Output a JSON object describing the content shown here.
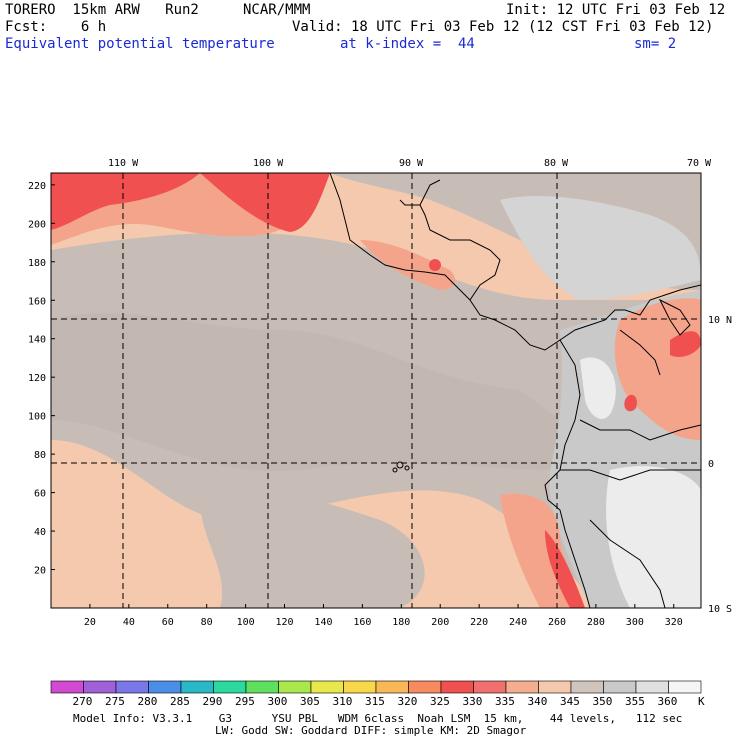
{
  "header": {
    "model": "TORERO  15km ARW   Run2",
    "org": "NCAR/MMM",
    "init": "Init: 12 UTC Fri 03 Feb 12",
    "fcst": "Fcst:    6 h",
    "valid": "Valid: 18 UTC Fri 03 Feb 12 (12 CST Fri 03 Feb 12)",
    "field": "Equivalent potential temperature",
    "kindex": "at k-index =  44",
    "smooth": "sm= 2"
  },
  "map": {
    "lon_labels": [
      "110 W",
      "100 W",
      "90 W",
      "80 W",
      "70 W"
    ],
    "lat_labels": [
      "10 N",
      "0",
      "10 S"
    ],
    "y_ticks": [
      "20",
      "40",
      "60",
      "80",
      "100",
      "120",
      "140",
      "160",
      "180",
      "200",
      "220"
    ],
    "x_ticks": [
      "20",
      "40",
      "60",
      "80",
      "100",
      "120",
      "140",
      "160",
      "180",
      "200",
      "220",
      "240",
      "260",
      "280",
      "300",
      "320"
    ]
  },
  "colorbar": {
    "unit": "K",
    "levels": [
      "270",
      "275",
      "280",
      "285",
      "290",
      "295",
      "300",
      "305",
      "310",
      "315",
      "320",
      "325",
      "330",
      "335",
      "340",
      "345",
      "350",
      "355",
      "360"
    ],
    "colors": [
      "#d24ad2",
      "#a060d8",
      "#7a78e8",
      "#4a8ee8",
      "#28b8c8",
      "#2ad8a0",
      "#5ee05e",
      "#a8e84a",
      "#e8e84a",
      "#f8d848",
      "#f8b858",
      "#f88a60",
      "#f05050",
      "#f07070",
      "#f5ad90",
      "#f4c9ad",
      "#d0c5bd",
      "#c9c9c9",
      "#e0e0e0",
      "#f5f5f5"
    ]
  },
  "footer": {
    "line1": "Model Info: V3.3.1    G3      YSU PBL   WDM 6class  Noah LSM  15 km,    44 levels,   112 sec",
    "line2": "LW: Godd SW: Goddard DIFF: simple KM: 2D Smagor"
  },
  "field_colors": {
    "base": "#f4c9ad",
    "gray": "#c8bdb6",
    "light_gray": "#d4d4d4",
    "white_gray": "#ececec",
    "salmon": "#f5a48c",
    "red": "#f05050",
    "coast": "#000000"
  }
}
